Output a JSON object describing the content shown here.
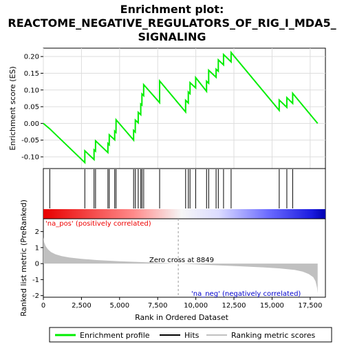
{
  "title_lines": [
    "Enrichment plot:",
    "REACTOME_NEGATIVE_REGULATORS_OF_RIG_I_MDA5_",
    "SIGNALING"
  ],
  "colors": {
    "es_line": "#00ee00",
    "hits": "#000000",
    "metric_fill": "#c0c0c0",
    "pos_label": "#ee0000",
    "neg_label": "#0000cc",
    "zero_line": "#999999"
  },
  "chart_data": [
    {
      "type": "line",
      "name": "enrichment-profile",
      "ylabel": "Enrichment score (ES)",
      "xlim": [
        0,
        18500
      ],
      "ylim": [
        -0.135,
        0.225
      ],
      "yticks": [
        -0.1,
        -0.05,
        0.0,
        0.05,
        0.1,
        0.15,
        0.2
      ],
      "ytick_labels": [
        "-0.10",
        "-0.05",
        "0.00",
        "0.05",
        "0.10",
        "0.15",
        "0.20"
      ],
      "grid": true,
      "x": [
        0,
        421,
        2719,
        2720,
        3324,
        3325,
        3422,
        3423,
        4234,
        4235,
        4323,
        4324,
        4677,
        4678,
        4767,
        4768,
        5919,
        5920,
        6030,
        6031,
        6221,
        6222,
        6390,
        6391,
        6467,
        6468,
        6579,
        6580,
        7626,
        7627,
        9331,
        9332,
        9508,
        9509,
        9618,
        9619,
        9989,
        9990,
        10704,
        10705,
        10843,
        10844,
        11328,
        11329,
        11473,
        11474,
        11817,
        11818,
        12313,
        12314,
        15469,
        15470,
        15969,
        15970,
        16351,
        16352,
        17989
      ],
      "y": [
        0.0,
        -0.016,
        -0.117,
        -0.082,
        -0.108,
        -0.079,
        -0.083,
        -0.052,
        -0.087,
        -0.06,
        -0.064,
        -0.034,
        -0.049,
        -0.023,
        -0.027,
        0.011,
        -0.05,
        -0.021,
        -0.026,
        0.01,
        0.002,
        0.033,
        0.026,
        0.058,
        0.055,
        0.088,
        0.083,
        0.116,
        0.062,
        0.127,
        0.034,
        0.069,
        0.061,
        0.094,
        0.089,
        0.122,
        0.106,
        0.137,
        0.096,
        0.126,
        0.12,
        0.159,
        0.138,
        0.162,
        0.156,
        0.19,
        0.175,
        0.206,
        0.184,
        0.212,
        0.039,
        0.07,
        0.048,
        0.077,
        0.06,
        0.09,
        0.0
      ]
    },
    {
      "type": "hits",
      "name": "hits",
      "x": [
        421,
        2720,
        3325,
        3423,
        4235,
        4324,
        4678,
        4768,
        5920,
        6031,
        6222,
        6391,
        6468,
        6580,
        7627,
        9332,
        9509,
        9619,
        9990,
        10705,
        10844,
        11329,
        11474,
        11818,
        12314,
        15470,
        15970,
        16352
      ]
    },
    {
      "type": "area",
      "name": "ranked-list-metric",
      "ylabel": "Ranked list metric (PreRanked)",
      "xlabel": "Rank in Ordered Dataset",
      "xlim": [
        0,
        18500
      ],
      "ylim": [
        -2.1,
        2.8
      ],
      "xticks": [
        0,
        2500,
        5000,
        7500,
        10000,
        12500,
        15000,
        17500
      ],
      "xtick_labels": [
        "0",
        "2,500",
        "5,000",
        "7,500",
        "10,000",
        "12,500",
        "15,000",
        "17,500"
      ],
      "yticks": [
        -2,
        -1,
        0,
        1,
        2
      ],
      "ytick_labels": [
        "-2",
        "-1",
        "0",
        "1",
        "2"
      ],
      "x": [
        0,
        50,
        150,
        300,
        500,
        800,
        1200,
        1700,
        2500,
        3500,
        5000,
        6500,
        8000,
        8849,
        10000,
        11500,
        13000,
        14500,
        15500,
        16500,
        17000,
        17400,
        17700,
        17850,
        17950,
        17989
      ],
      "y": [
        1.65,
        1.35,
        1.1,
        0.9,
        0.72,
        0.58,
        0.47,
        0.38,
        0.3,
        0.22,
        0.15,
        0.09,
        0.03,
        0.0,
        -0.05,
        -0.11,
        -0.17,
        -0.24,
        -0.3,
        -0.4,
        -0.5,
        -0.65,
        -0.85,
        -1.1,
        -1.5,
        -1.85
      ]
    }
  ],
  "zero_cross_label": "Zero cross at 8849",
  "pos_label": "'na_pos' (positively correlated)",
  "neg_label": "'na_neg' (negatively correlated)",
  "legend": {
    "items": [
      {
        "label": "Enrichment profile",
        "color": "#00ee00"
      },
      {
        "label": "Hits",
        "color": "#000000"
      },
      {
        "label": "Ranking metric scores",
        "color": "#c0c0c0"
      }
    ]
  }
}
